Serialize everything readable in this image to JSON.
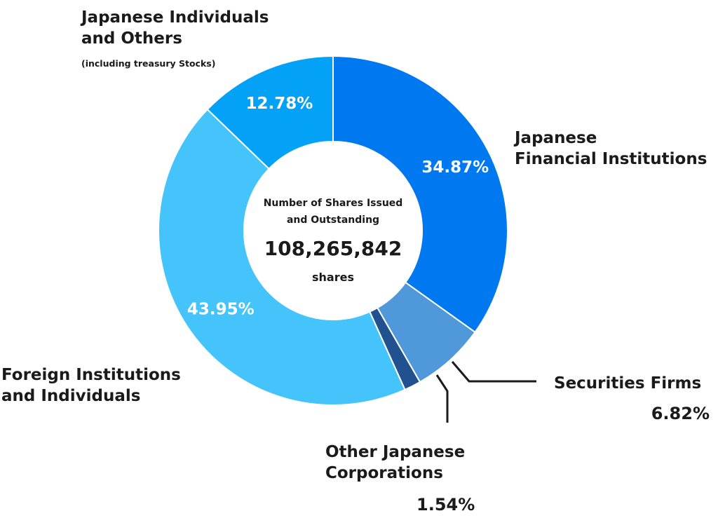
{
  "chart_data": {
    "type": "pie",
    "donut": true,
    "slices": [
      {
        "label": "Japanese Financial Institutions",
        "value": 34.87,
        "value_label": "34.87%",
        "color": "#0078f0"
      },
      {
        "label": "Securities Firms",
        "value": 6.82,
        "value_label": "6.82%",
        "color": "#4f98da"
      },
      {
        "label": "Other Japanese Corporations",
        "value": 1.54,
        "value_label": "1.54%",
        "color": "#21528f"
      },
      {
        "label": "Foreign Institutions and Individuals",
        "value": 43.95,
        "value_label": "43.95%",
        "color": "#45c4fb"
      },
      {
        "label": "Japanese Individuals and Others",
        "sublabel": "(including treasury Stocks)",
        "value": 12.78,
        "value_label": "12.78%",
        "color": "#04a2f7"
      }
    ],
    "center": {
      "heading_line1": "Number of Shares Issued",
      "heading_line2": "and Outstanding",
      "value": "108,265,842",
      "unit": "shares"
    }
  },
  "labels": {
    "jfi_line1": "Japanese",
    "jfi_line2": "Financial Institutions",
    "sec_line1": "Securities Firms",
    "ojc_line1": "Other Japanese",
    "ojc_line2": "Corporations",
    "fii_line1": "Foreign Institutions",
    "fii_line2": "and Individuals",
    "jio_line1": "Japanese Individuals",
    "jio_line2": "and Others"
  }
}
